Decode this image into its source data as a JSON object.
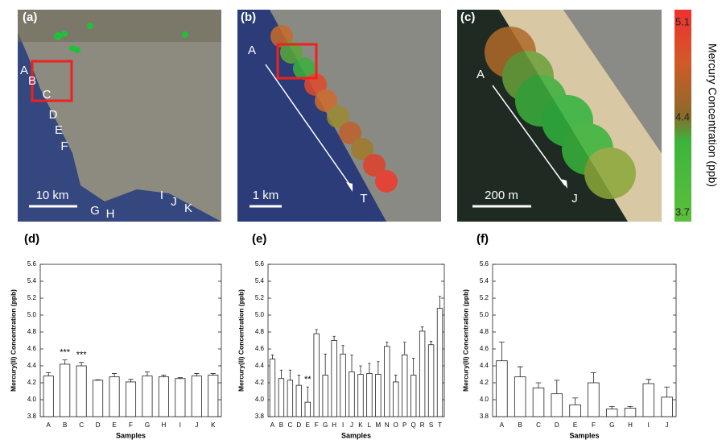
{
  "maps": [
    {
      "label": "(a)",
      "points": [
        "A",
        "B",
        "C",
        "D",
        "E",
        "F",
        "G",
        "H",
        "I",
        "J",
        "K"
      ],
      "scale": "10 km"
    },
    {
      "label": "(b)",
      "points": [
        "A",
        "T"
      ],
      "scale": "1 km"
    },
    {
      "label": "(c)",
      "points": [
        "A",
        "J"
      ],
      "scale": "200 m"
    }
  ],
  "colorbar": {
    "title": "Mercury Concentration (ppb)",
    "lim": [
      3.7,
      5.1
    ],
    "ticks": [
      5.1,
      4.4,
      3.7
    ]
  },
  "chart_data": [
    {
      "type": "bar",
      "label": "(d)",
      "xlabel": "Samples",
      "ylabel": "Mercury(II) Concentration (ppb)",
      "categories": [
        "A",
        "B",
        "C",
        "D",
        "E",
        "F",
        "G",
        "H",
        "I",
        "J",
        "K"
      ],
      "values": [
        4.28,
        4.42,
        4.4,
        4.23,
        4.27,
        4.21,
        4.28,
        4.27,
        4.25,
        4.28,
        4.29
      ],
      "errors": [
        0.04,
        0.05,
        0.04,
        0.005,
        0.04,
        0.03,
        0.05,
        0.02,
        0.01,
        0.03,
        0.02
      ],
      "annotations": [
        {
          "text": "***",
          "category": "B"
        },
        {
          "text": "***",
          "category": "C"
        }
      ],
      "ylim": [
        3.8,
        5.6
      ],
      "yticks": [
        3.8,
        {
          "value": 4,
          "label": "4.0"
        },
        4.2,
        4.4,
        4.6,
        4.8,
        {
          "value": 5,
          "label": "5.0"
        },
        5.2,
        5.4,
        5.6
      ]
    },
    {
      "type": "bar",
      "label": "(e)",
      "xlabel": "Samples",
      "ylabel": "Mercury(II) Concentration (ppb)",
      "categories": [
        "A",
        "B",
        "C",
        "D",
        "E",
        "F",
        "G",
        "H",
        "I",
        "J",
        "K",
        "L",
        "M",
        "N",
        "O",
        "P",
        "Q",
        "R",
        "S",
        "T"
      ],
      "values": [
        4.48,
        4.25,
        4.23,
        4.17,
        3.97,
        4.78,
        4.29,
        4.7,
        4.54,
        4.33,
        4.3,
        4.31,
        4.3,
        4.63,
        4.21,
        4.53,
        4.29,
        4.81,
        4.65,
        5.08
      ],
      "errors": [
        0.05,
        0.1,
        0.12,
        0.12,
        0.18,
        0.05,
        0.25,
        0.05,
        0.1,
        0.2,
        0.1,
        0.12,
        0.15,
        0.05,
        0.08,
        0.15,
        0.2,
        0.05,
        0.04,
        0.14
      ],
      "annotations": [
        {
          "text": "**",
          "category": "E"
        }
      ],
      "ylim": [
        3.8,
        5.6
      ],
      "yticks": [
        3.8,
        {
          "value": 4,
          "label": "4.0"
        },
        4.2,
        4.4,
        4.6,
        4.8,
        {
          "value": 5,
          "label": "5.0"
        },
        5.2,
        5.4,
        5.6
      ]
    },
    {
      "type": "bar",
      "label": "(f)",
      "xlabel": "Samples",
      "ylabel": "Mercury(II) Concentration (ppb)",
      "categories": [
        "A",
        "B",
        "C",
        "D",
        "E",
        "F",
        "G",
        "H",
        "I",
        "J"
      ],
      "values": [
        4.46,
        4.27,
        4.14,
        4.07,
        3.94,
        4.2,
        3.89,
        3.9,
        4.19,
        4.03
      ],
      "errors": [
        0.22,
        0.12,
        0.06,
        0.16,
        0.08,
        0.12,
        0.03,
        0.02,
        0.05,
        0.12
      ],
      "annotations": [],
      "ylim": [
        3.8,
        5.6
      ],
      "yticks": [
        3.8,
        {
          "value": 4,
          "label": "4.0"
        },
        4.2,
        4.4,
        4.6,
        4.8,
        {
          "value": 5,
          "label": "5.0"
        },
        5.2,
        5.4,
        5.6
      ]
    }
  ]
}
